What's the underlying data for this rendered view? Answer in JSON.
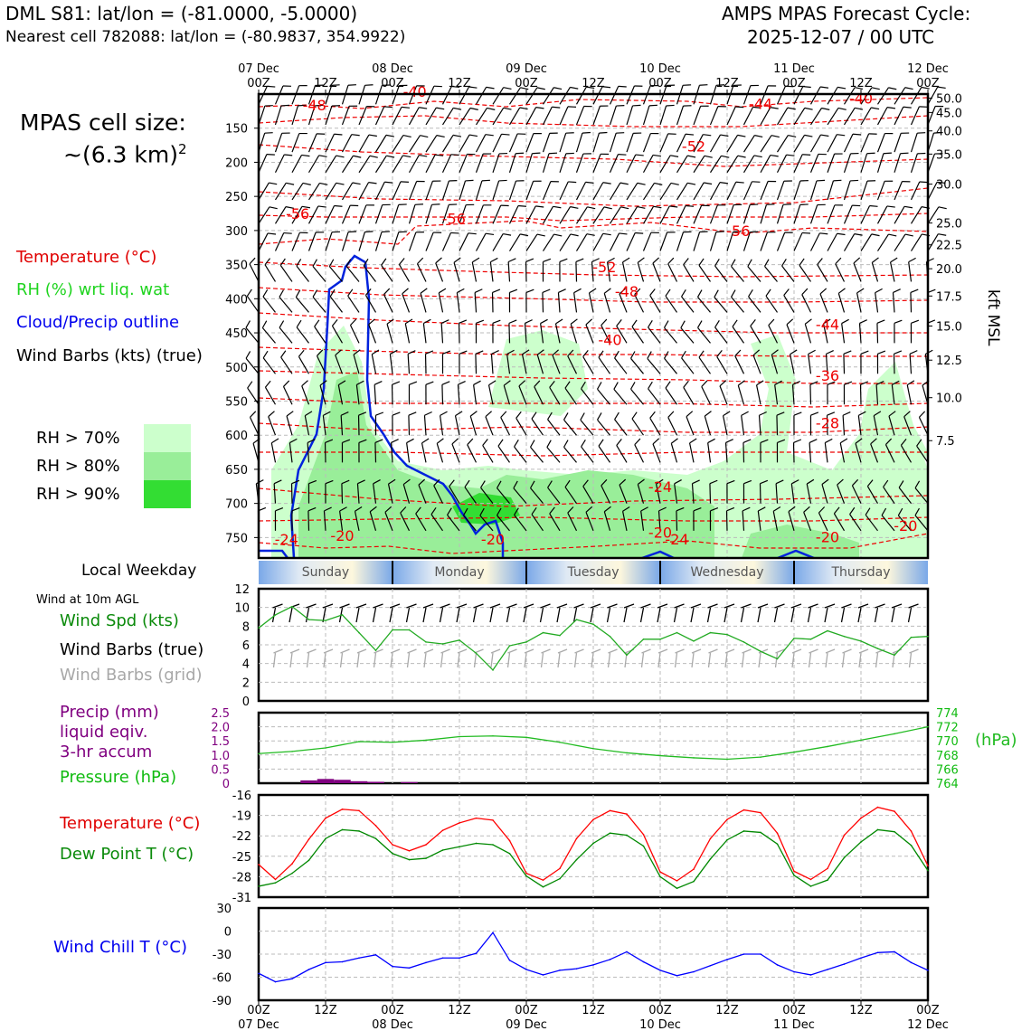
{
  "header": {
    "station_line": "DML S81: lat/lon = (-81.0000, -5.0000)",
    "nearest_cell": "Nearest cell 782088: lat/lon = (-80.9837, 354.9922)",
    "cycle_title": "AMPS MPAS Forecast Cycle:",
    "cycle_date": "2025-12-07 / 00 UTC"
  },
  "cell_size": {
    "label": "MPAS cell size:",
    "value": "~(6.3 km)",
    "exponent": "2"
  },
  "legend": {
    "temperature": "Temperature (°C)",
    "rh": "RH (%) wrt liq. wat",
    "cloud": "Cloud/Precip outline",
    "wind": "Wind Barbs (kts) (true)",
    "rh70": "RH > 70%",
    "rh80": "RH > 80%",
    "rh90": "RH > 90%",
    "rh_colors": [
      "#ccffcc",
      "#99ee99",
      "#33dd33"
    ]
  },
  "right_axis_title": "kft MSL",
  "local_weekday_label": "Local Weekday",
  "weekdays": [
    "Sunday",
    "Monday",
    "Tuesday",
    "Wednesday",
    "Thursday"
  ],
  "wind10": {
    "title": "Wind at 10m AGL",
    "spd": "Wind Spd (kts)",
    "barbs_true": "Wind Barbs (true)",
    "barbs_grid": "Wind Barbs (grid)"
  },
  "precip_labels": {
    "l1": "Precip (mm)",
    "l2": "liquid eqiv.",
    "l3": "3-hr accum",
    "pressure": "Pressure (hPa)",
    "hpa": "(hPa)"
  },
  "temp_labels": {
    "t": "Temperature (°C)",
    "td": "Dew Point T (°C)"
  },
  "windchill_label": "Wind Chill T (°C)",
  "colors": {
    "temp": "#ff0000",
    "dew": "#008800",
    "pressure": "#22bb22",
    "wind_spd": "#22aa22",
    "chill": "#0000ff",
    "cloud": "#0022dd",
    "precip": "#800080"
  },
  "top_time_labels": [
    {
      "d": "07 Dec",
      "h": "00Z"
    },
    {
      "d": "",
      "h": "12Z"
    },
    {
      "d": "08 Dec",
      "h": "00Z"
    },
    {
      "d": "",
      "h": "12Z"
    },
    {
      "d": "09 Dec",
      "h": "00Z"
    },
    {
      "d": "",
      "h": "12Z"
    },
    {
      "d": "10 Dec",
      "h": "00Z"
    },
    {
      "d": "",
      "h": "12Z"
    },
    {
      "d": "11 Dec",
      "h": "00Z"
    },
    {
      "d": "",
      "h": "12Z"
    },
    {
      "d": "12 Dec",
      "h": "00Z"
    }
  ],
  "chart_data": [
    {
      "type": "line",
      "name": "Vertical cross-section (time vs pressure)",
      "y_pressure_ticks": [
        150,
        200,
        250,
        300,
        350,
        400,
        450,
        500,
        550,
        600,
        650,
        700,
        750
      ],
      "ylim_hpa": [
        780,
        100
      ],
      "kft_ticks": [
        "50.0",
        "45.0",
        "40.0",
        "35.0",
        "30.0",
        "25.0",
        "22.5",
        "20.0",
        "17.5",
        "15.0",
        "12.5",
        "10.0",
        "7.5"
      ],
      "kft_tick_hpa": [
        106,
        127,
        154,
        188,
        232,
        289,
        321,
        356,
        396,
        440,
        490,
        545,
        608
      ],
      "temperature_labels": [
        {
          "t": "-48",
          "h": 10,
          "p": 124
        },
        {
          "t": "-40",
          "h": 28,
          "p": 104
        },
        {
          "t": "-44",
          "h": 90,
          "p": 122
        },
        {
          "t": "-40",
          "h": 108,
          "p": 114
        },
        {
          "t": "-52",
          "h": 78,
          "p": 184
        },
        {
          "t": "-56",
          "h": 7,
          "p": 283
        },
        {
          "t": "-56",
          "h": 35,
          "p": 290
        },
        {
          "t": "-56",
          "h": 86,
          "p": 308
        },
        {
          "t": "-52",
          "h": 62,
          "p": 361
        },
        {
          "t": "-48",
          "h": 66,
          "p": 397
        },
        {
          "t": "-44",
          "h": 102,
          "p": 445
        },
        {
          "t": "-40",
          "h": 63,
          "p": 468
        },
        {
          "t": "-36",
          "h": 102,
          "p": 520
        },
        {
          "t": "-28",
          "h": 102,
          "p": 590
        },
        {
          "t": "-24",
          "h": 72,
          "p": 683
        },
        {
          "t": "-24",
          "h": 5,
          "p": 760
        },
        {
          "t": "-20",
          "h": 15,
          "p": 755
        },
        {
          "t": "-20",
          "h": 42,
          "p": 760
        },
        {
          "t": "-20",
          "h": 72,
          "p": 750
        },
        {
          "t": "-24",
          "h": 75,
          "p": 760
        },
        {
          "t": "-20",
          "h": 102,
          "p": 757
        },
        {
          "t": "-20",
          "h": 116,
          "p": 740
        }
      ],
      "time_hours_per_step": 3,
      "steps": 41
    },
    {
      "type": "line",
      "name": "10m wind speed",
      "ylabel": "kts",
      "ylim": [
        0,
        12
      ],
      "yticks": [
        0,
        2,
        4,
        6,
        8,
        10,
        12
      ],
      "x_hours": [
        0,
        3,
        6,
        9,
        12,
        15,
        18,
        21,
        24,
        27,
        30,
        33,
        36,
        39,
        42,
        45,
        48,
        51,
        54,
        57,
        60,
        63,
        66,
        69,
        72,
        75,
        78,
        81,
        84,
        87,
        90,
        93,
        96,
        99,
        102,
        105,
        108,
        111,
        114,
        117,
        120
      ],
      "values": [
        7.8,
        9.2,
        10.1,
        8.7,
        8.6,
        9.2,
        7.3,
        5.4,
        7.6,
        7.6,
        6.3,
        6.1,
        6.5,
        5.1,
        3.3,
        5.9,
        6.3,
        7.3,
        7.0,
        8.7,
        8.2,
        6.9,
        4.9,
        6.6,
        6.6,
        7.3,
        6.4,
        7.3,
        7.1,
        6.3,
        5.3,
        4.5,
        6.7,
        6.6,
        7.5,
        6.9,
        6.4,
        5.6,
        4.9,
        6.8,
        6.9
      ]
    },
    {
      "type": "line",
      "name": "Precip and pressure",
      "precip_ylim": [
        0,
        2.5
      ],
      "precip_yticks": [
        "2.5",
        "2.0",
        "1.5",
        "1.0",
        "0.5",
        "0"
      ],
      "pressure_ylim": [
        764,
        774
      ],
      "pressure_yticks": [
        "774",
        "772",
        "770",
        "768",
        "766",
        "764"
      ],
      "precip_bars": [
        {
          "h": 9,
          "v": 0.1
        },
        {
          "h": 12,
          "v": 0.15
        },
        {
          "h": 15,
          "v": 0.12
        },
        {
          "h": 18,
          "v": 0.07
        },
        {
          "h": 21,
          "v": 0.05
        },
        {
          "h": 27,
          "v": 0.04
        }
      ],
      "pressure_x_hours": [
        0,
        6,
        12,
        18,
        24,
        30,
        36,
        42,
        48,
        54,
        60,
        66,
        72,
        78,
        84,
        90,
        96,
        102,
        108,
        114,
        120
      ],
      "pressure_values": [
        768.2,
        768.5,
        769.0,
        769.9,
        769.8,
        770.1,
        770.6,
        770.7,
        770.5,
        769.8,
        768.9,
        768.3,
        767.9,
        767.6,
        767.4,
        767.7,
        768.4,
        769.2,
        770.1,
        771.0,
        772.0
      ]
    },
    {
      "type": "line",
      "name": "Temperature and dew point",
      "ylim": [
        -31,
        -16
      ],
      "yticks": [
        -16,
        -19,
        -22,
        -25,
        -28,
        -31
      ],
      "x_hours": [
        0,
        3,
        6,
        9,
        12,
        15,
        18,
        21,
        24,
        27,
        30,
        33,
        36,
        39,
        42,
        45,
        48,
        51,
        54,
        57,
        60,
        63,
        66,
        69,
        72,
        75,
        78,
        81,
        84,
        87,
        90,
        93,
        96,
        99,
        102,
        105,
        108,
        111,
        114,
        117,
        120
      ],
      "temperature": [
        -26.2,
        -28.4,
        -26.1,
        -22.5,
        -19.4,
        -18.1,
        -18.3,
        -20.5,
        -23.3,
        -24.2,
        -23.3,
        -21.2,
        -20.1,
        -19.4,
        -19.7,
        -22.7,
        -27.5,
        -28.5,
        -26.8,
        -22.4,
        -19.6,
        -18.3,
        -18.8,
        -21.8,
        -27.3,
        -28.6,
        -26.9,
        -22.4,
        -19.6,
        -18.2,
        -18.6,
        -21.6,
        -27.2,
        -28.4,
        -26.8,
        -21.9,
        -19.4,
        -17.8,
        -18.4,
        -21.3,
        -26.4
      ],
      "dew_point": [
        -29.4,
        -28.9,
        -27.5,
        -25.6,
        -22.4,
        -21.1,
        -21.3,
        -22.4,
        -24.6,
        -25.5,
        -25.3,
        -24.1,
        -23.6,
        -23.1,
        -23.3,
        -24.6,
        -27.9,
        -29.5,
        -28.3,
        -25.5,
        -23.1,
        -21.6,
        -21.9,
        -23.5,
        -28.0,
        -29.7,
        -28.7,
        -25.4,
        -22.6,
        -21.3,
        -21.5,
        -23.2,
        -27.8,
        -29.4,
        -28.5,
        -25.2,
        -22.9,
        -21.1,
        -21.4,
        -23.4,
        -27.1
      ]
    },
    {
      "type": "line",
      "name": "Wind chill",
      "ylim": [
        -90,
        30
      ],
      "yticks": [
        30,
        0,
        -30,
        -60,
        -90
      ],
      "x_hours": [
        0,
        3,
        6,
        9,
        12,
        15,
        18,
        21,
        24,
        27,
        30,
        33,
        36,
        39,
        42,
        45,
        48,
        51,
        54,
        57,
        60,
        63,
        66,
        69,
        72,
        75,
        78,
        81,
        84,
        87,
        90,
        93,
        96,
        99,
        102,
        105,
        108,
        111,
        114,
        117,
        120
      ],
      "values": [
        -55,
        -66,
        -62,
        -50,
        -41,
        -40,
        -35,
        -31,
        -46,
        -48,
        -41,
        -35,
        -35,
        -29,
        -2,
        -38,
        -50,
        -57,
        -51,
        -49,
        -44,
        -37,
        -27,
        -40,
        -51,
        -58,
        -53,
        -45,
        -37,
        -30,
        -30,
        -44,
        -53,
        -57,
        -50,
        -43,
        -35,
        -28,
        -27,
        -41,
        -51
      ]
    }
  ],
  "bottom_time_labels": [
    {
      "h": "00Z",
      "d": "07 Dec"
    },
    {
      "h": "12Z",
      "d": ""
    },
    {
      "h": "00Z",
      "d": "08 Dec"
    },
    {
      "h": "12Z",
      "d": ""
    },
    {
      "h": "00Z",
      "d": "09 Dec"
    },
    {
      "h": "12Z",
      "d": ""
    },
    {
      "h": "00Z",
      "d": "10 Dec"
    },
    {
      "h": "12Z",
      "d": ""
    },
    {
      "h": "00Z",
      "d": "11 Dec"
    },
    {
      "h": "12Z",
      "d": ""
    },
    {
      "h": "00Z",
      "d": "12 Dec"
    }
  ]
}
